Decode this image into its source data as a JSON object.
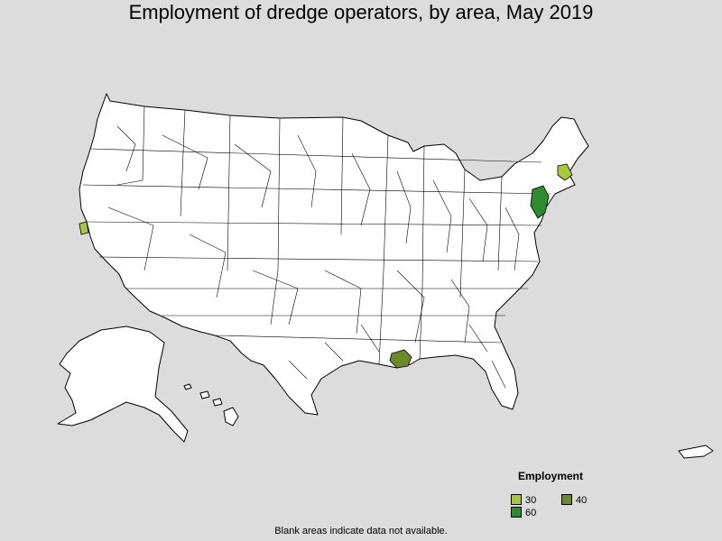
{
  "title": "Employment of dredge operators, by area, May 2019",
  "legend": {
    "title": "Employment",
    "items": [
      {
        "label": "30",
        "color": "#a6c83a"
      },
      {
        "label": "40",
        "color": "#6b8a2a"
      },
      {
        "label": "60",
        "color": "#2e8b2e"
      }
    ]
  },
  "footnote": "Blank areas indicate data not available.",
  "highlighted_areas": [
    {
      "region": "Northern California (San Francisco Bay area)",
      "employment_bin": "30"
    },
    {
      "region": "Eastern Massachusetts",
      "employment_bin": "30"
    },
    {
      "region": "New Jersey / New York metro",
      "employment_bin": "60"
    },
    {
      "region": "Southeastern Louisiana",
      "employment_bin": "40"
    }
  ],
  "colors": {
    "background": "#dcdcdc",
    "land": "#ffffff",
    "border": "#000000"
  }
}
